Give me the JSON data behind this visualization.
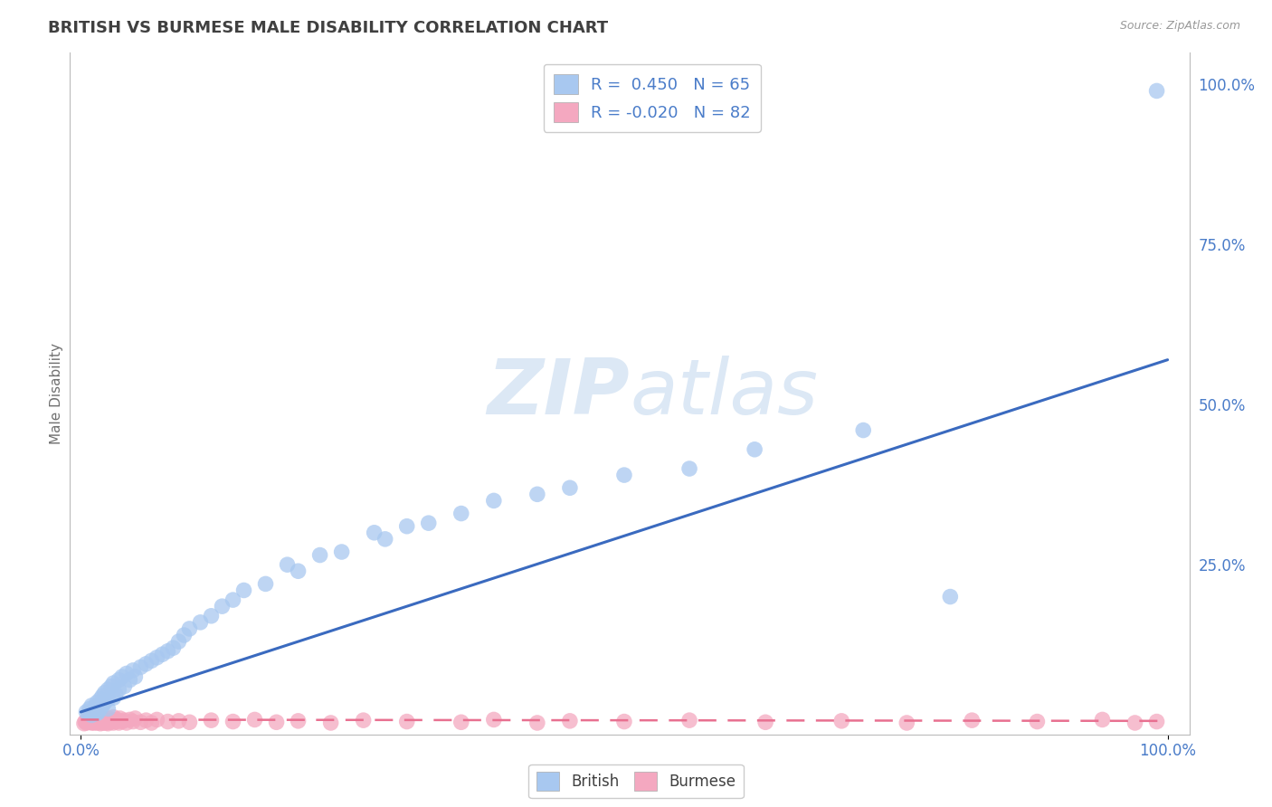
{
  "title": "BRITISH VS BURMESE MALE DISABILITY CORRELATION CHART",
  "source_text": "Source: ZipAtlas.com",
  "ylabel": "Male Disability",
  "british_R": 0.45,
  "british_N": 65,
  "burmese_R": -0.02,
  "burmese_N": 82,
  "british_color": "#a8c8f0",
  "burmese_color": "#f4a8c0",
  "british_line_color": "#3a6abf",
  "burmese_line_color": "#e87090",
  "watermark_color": "#dce8f5",
  "background_color": "#ffffff",
  "grid_color": "#cccccc",
  "title_color": "#404040",
  "axis_label_color": "#4a7cc9",
  "british_x": [
    0.005,
    0.007,
    0.008,
    0.01,
    0.01,
    0.012,
    0.013,
    0.015,
    0.015,
    0.016,
    0.018,
    0.018,
    0.02,
    0.02,
    0.022,
    0.022,
    0.025,
    0.025,
    0.025,
    0.028,
    0.03,
    0.03,
    0.032,
    0.035,
    0.035,
    0.038,
    0.04,
    0.042,
    0.045,
    0.048,
    0.05,
    0.055,
    0.06,
    0.065,
    0.07,
    0.075,
    0.08,
    0.085,
    0.09,
    0.095,
    0.1,
    0.11,
    0.12,
    0.13,
    0.14,
    0.15,
    0.17,
    0.19,
    0.2,
    0.22,
    0.24,
    0.27,
    0.28,
    0.3,
    0.32,
    0.35,
    0.38,
    0.42,
    0.45,
    0.5,
    0.56,
    0.62,
    0.72,
    0.8,
    0.99
  ],
  "british_y": [
    0.02,
    0.018,
    0.025,
    0.015,
    0.03,
    0.022,
    0.028,
    0.018,
    0.035,
    0.02,
    0.025,
    0.04,
    0.03,
    0.045,
    0.035,
    0.05,
    0.025,
    0.04,
    0.055,
    0.06,
    0.042,
    0.065,
    0.048,
    0.055,
    0.07,
    0.075,
    0.06,
    0.08,
    0.07,
    0.085,
    0.075,
    0.09,
    0.095,
    0.1,
    0.105,
    0.11,
    0.115,
    0.12,
    0.13,
    0.14,
    0.15,
    0.16,
    0.17,
    0.185,
    0.195,
    0.21,
    0.22,
    0.25,
    0.24,
    0.265,
    0.27,
    0.3,
    0.29,
    0.31,
    0.315,
    0.33,
    0.35,
    0.36,
    0.37,
    0.39,
    0.4,
    0.43,
    0.46,
    0.2,
    0.99
  ],
  "burmese_x": [
    0.003,
    0.004,
    0.005,
    0.006,
    0.006,
    0.007,
    0.007,
    0.008,
    0.008,
    0.009,
    0.009,
    0.01,
    0.01,
    0.01,
    0.011,
    0.011,
    0.012,
    0.012,
    0.013,
    0.013,
    0.014,
    0.014,
    0.015,
    0.015,
    0.016,
    0.016,
    0.017,
    0.018,
    0.018,
    0.019,
    0.02,
    0.02,
    0.021,
    0.022,
    0.023,
    0.024,
    0.025,
    0.025,
    0.026,
    0.027,
    0.028,
    0.03,
    0.03,
    0.032,
    0.033,
    0.035,
    0.036,
    0.038,
    0.04,
    0.042,
    0.045,
    0.048,
    0.05,
    0.055,
    0.06,
    0.065,
    0.07,
    0.08,
    0.09,
    0.1,
    0.12,
    0.14,
    0.16,
    0.18,
    0.2,
    0.23,
    0.26,
    0.3,
    0.35,
    0.38,
    0.42,
    0.45,
    0.5,
    0.56,
    0.63,
    0.7,
    0.76,
    0.82,
    0.88,
    0.94,
    0.97,
    0.99
  ],
  "burmese_y": [
    0.002,
    0.005,
    0.003,
    0.008,
    0.004,
    0.006,
    0.01,
    0.004,
    0.012,
    0.006,
    0.014,
    0.003,
    0.008,
    0.015,
    0.005,
    0.01,
    0.003,
    0.007,
    0.004,
    0.011,
    0.005,
    0.012,
    0.003,
    0.008,
    0.004,
    0.013,
    0.005,
    0.002,
    0.009,
    0.006,
    0.003,
    0.01,
    0.004,
    0.007,
    0.003,
    0.008,
    0.002,
    0.005,
    0.01,
    0.004,
    0.007,
    0.003,
    0.012,
    0.005,
    0.008,
    0.003,
    0.01,
    0.005,
    0.007,
    0.003,
    0.008,
    0.005,
    0.01,
    0.004,
    0.007,
    0.003,
    0.008,
    0.005,
    0.006,
    0.004,
    0.007,
    0.005,
    0.008,
    0.004,
    0.006,
    0.003,
    0.007,
    0.005,
    0.004,
    0.008,
    0.003,
    0.006,
    0.005,
    0.007,
    0.004,
    0.006,
    0.003,
    0.007,
    0.005,
    0.008,
    0.003,
    0.005
  ],
  "brit_line_x": [
    0.0,
    1.0
  ],
  "brit_line_y": [
    0.02,
    0.57
  ],
  "bur_line_x": [
    0.0,
    1.0
  ],
  "bur_line_y": [
    0.008,
    0.006
  ],
  "xlim": [
    -0.01,
    1.02
  ],
  "ylim": [
    -0.015,
    1.05
  ],
  "xticks": [
    0.0,
    1.0
  ],
  "yticks_right": [
    1.0,
    0.75,
    0.5,
    0.25
  ],
  "ytick_labels_right": [
    "100.0%",
    "75.0%",
    "50.0%",
    "25.0%"
  ],
  "xtick_labels": [
    "0.0%",
    "100.0%"
  ]
}
